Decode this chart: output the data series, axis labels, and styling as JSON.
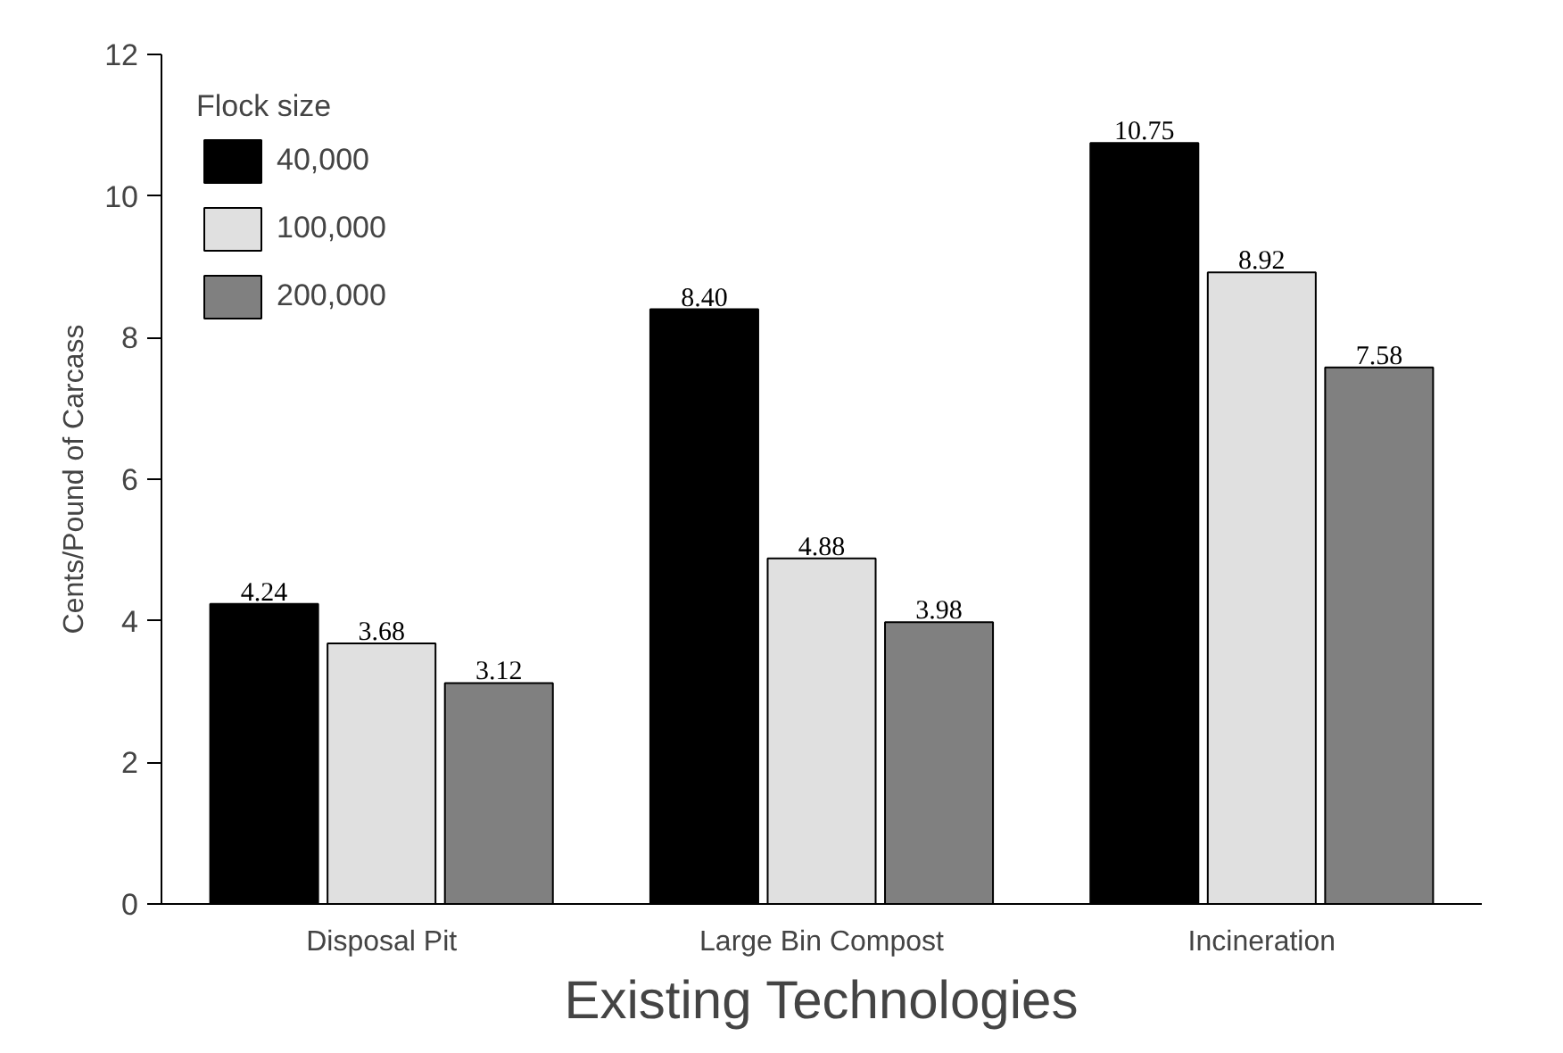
{
  "chart_data": {
    "type": "bar",
    "xlabel": "Existing Technologies",
    "ylabel": "Cents/Pound of Carcass",
    "legend_title": "Flock size",
    "categories": [
      "Disposal Pit",
      "Large Bin Compost",
      "Incineration"
    ],
    "series": [
      {
        "name": "40,000",
        "color": "#000000",
        "values": [
          4.24,
          8.4,
          10.75
        ],
        "value_labels": [
          "4.24",
          "8.40",
          "10.75"
        ]
      },
      {
        "name": "100,000",
        "color": "#e0e0e0",
        "values": [
          3.68,
          4.88,
          8.92
        ],
        "value_labels": [
          "3.68",
          "4.88",
          "8.92"
        ]
      },
      {
        "name": "200,000",
        "color": "#808080",
        "values": [
          3.12,
          3.98,
          7.58
        ],
        "value_labels": [
          "3.12",
          "3.98",
          "7.58"
        ]
      }
    ],
    "ylim": [
      0,
      12
    ],
    "yticks": [
      0,
      2,
      4,
      6,
      8,
      10,
      12
    ],
    "grid": false,
    "legend": "top left"
  }
}
